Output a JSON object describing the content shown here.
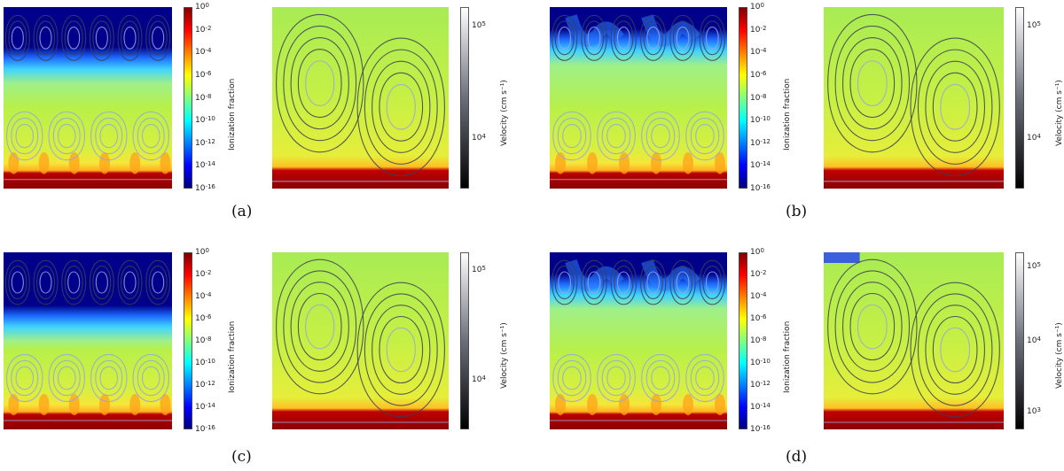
{
  "panels": [
    {
      "label": "(a)"
    },
    {
      "label": "(b)"
    },
    {
      "label": "(c)"
    },
    {
      "label": "(d)"
    }
  ],
  "ionization_colorbar": {
    "label": "Ionization fraction",
    "ticks": [
      "0",
      "-2",
      "-4",
      "-6",
      "-8",
      "-10",
      "-12",
      "-14",
      "-16"
    ],
    "base": "10",
    "colormap": [
      "#00007f",
      "#0000ff",
      "#0080ff",
      "#00ffff",
      "#80ff80",
      "#ffff00",
      "#ff8000",
      "#ff0000",
      "#7f0000"
    ]
  },
  "velocity_colorbars": [
    {
      "label": "Velocity (cm s⁻¹)",
      "ticks": [
        "5",
        "4"
      ]
    },
    {
      "label": "Velocity (cm s⁻¹)",
      "ticks": [
        "5",
        "4"
      ]
    },
    {
      "label": "Velocity (cm s⁻¹)",
      "ticks": [
        "5",
        "4"
      ]
    },
    {
      "label": "Velocity (cm s⁻¹)",
      "ticks": [
        "5",
        "4",
        "3"
      ]
    }
  ],
  "colors": {
    "ion_top": "#00008b",
    "ion_mid": "#b8f04a",
    "ion_bottom": "#8b0000",
    "stream_light": "#9aa6d8",
    "stream_dark": "#3b3f55"
  }
}
